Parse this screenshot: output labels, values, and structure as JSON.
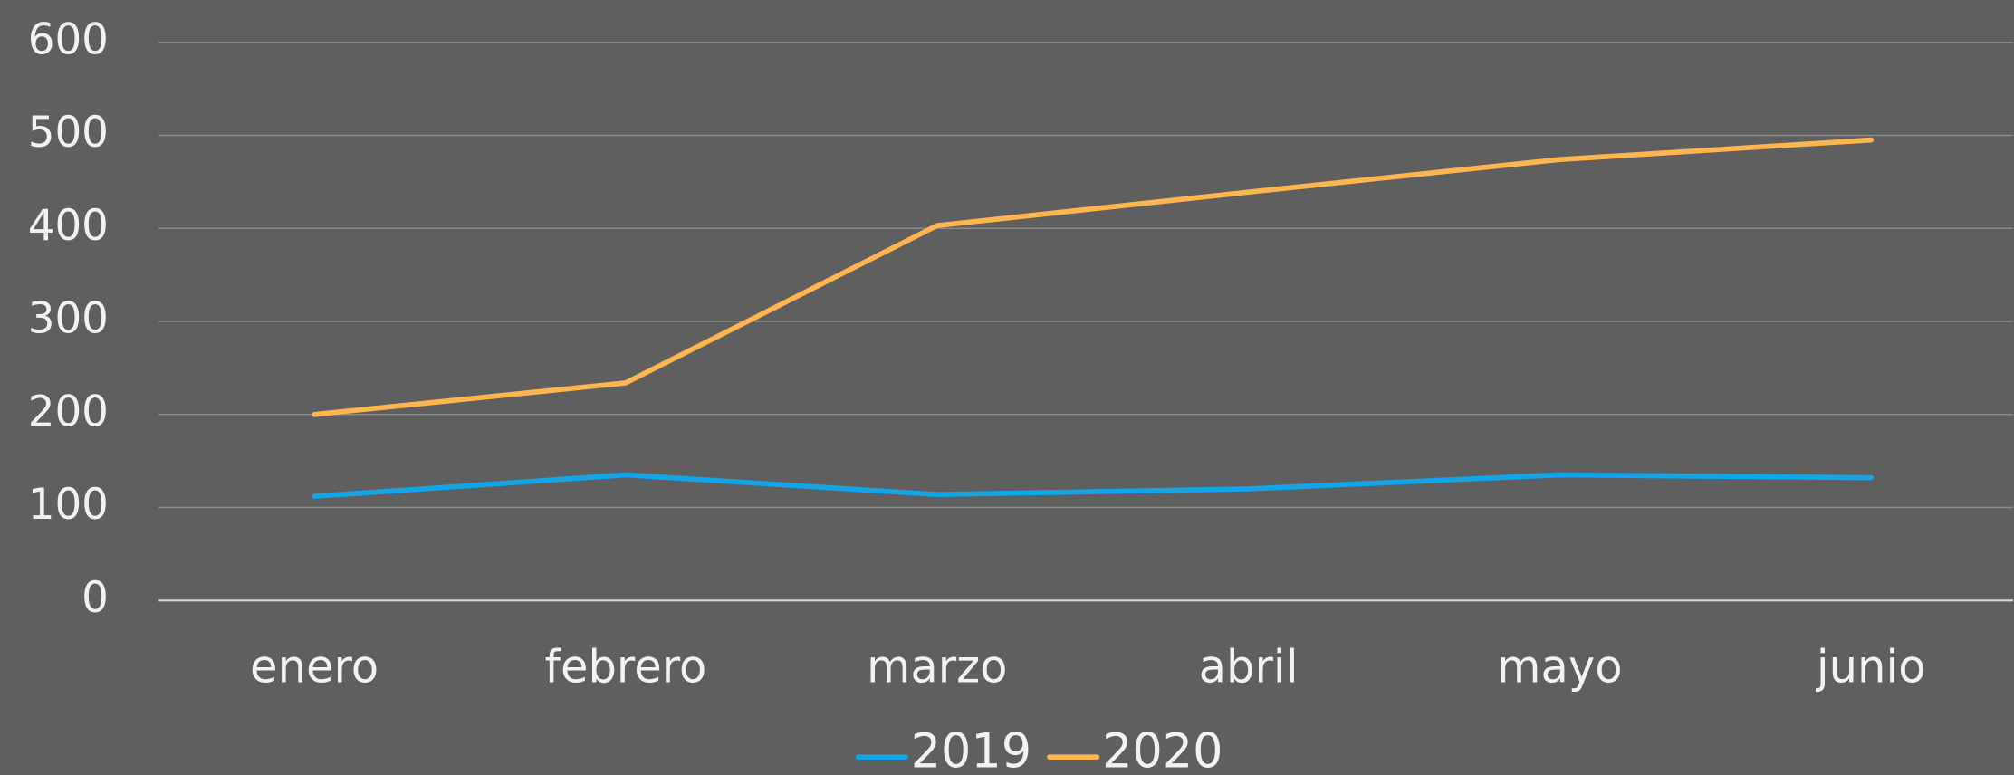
{
  "chart_data": {
    "type": "line",
    "categories": [
      "enero",
      "febrero",
      "marzo",
      "abril",
      "mayo",
      "junio"
    ],
    "series": [
      {
        "name": "2019",
        "color": "#13a5e8",
        "values": [
          112,
          135,
          114,
          120,
          135,
          132
        ]
      },
      {
        "name": "2020",
        "color": "#ffb54f",
        "values": [
          200,
          234,
          403,
          439,
          474,
          495
        ]
      }
    ],
    "ylim": [
      0,
      600
    ],
    "yticks": [
      0,
      100,
      200,
      300,
      400,
      500,
      600
    ],
    "grid": true,
    "legend": "bottom"
  }
}
